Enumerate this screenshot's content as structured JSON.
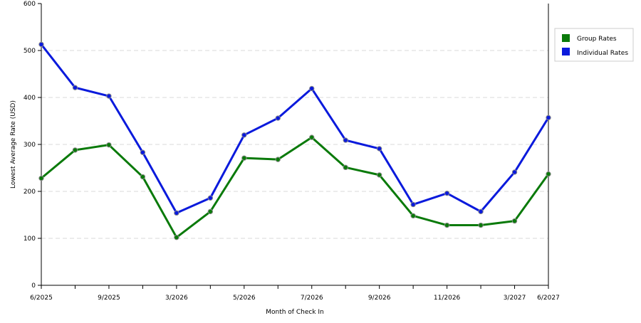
{
  "chart_data": {
    "type": "line",
    "categories": [
      "6/2025",
      "",
      "9/2025",
      "",
      "3/2026",
      "",
      "5/2026",
      "",
      "7/2026",
      "",
      "9/2026",
      "",
      "11/2026",
      "",
      "3/2027",
      "6/2027"
    ],
    "series": [
      {
        "name": "Group Rates",
        "color": "#0a7a0a",
        "values": [
          228,
          288,
          299,
          231,
          102,
          157,
          271,
          268,
          315,
          251,
          235,
          148,
          128,
          128,
          137,
          237
        ]
      },
      {
        "name": "Individual Rates",
        "color": "#0a1adc",
        "values": [
          513,
          421,
          403,
          283,
          154,
          186,
          320,
          356,
          419,
          309,
          291,
          172,
          196,
          157,
          241,
          357
        ]
      }
    ],
    "xlabel": "Month of Check In",
    "ylabel": "Lowest Average Rate (USD)",
    "ylim": [
      0,
      600
    ],
    "yticks": [
      0,
      100,
      200,
      300,
      400,
      500,
      600
    ],
    "grid": true,
    "legend_position": "top-right"
  }
}
